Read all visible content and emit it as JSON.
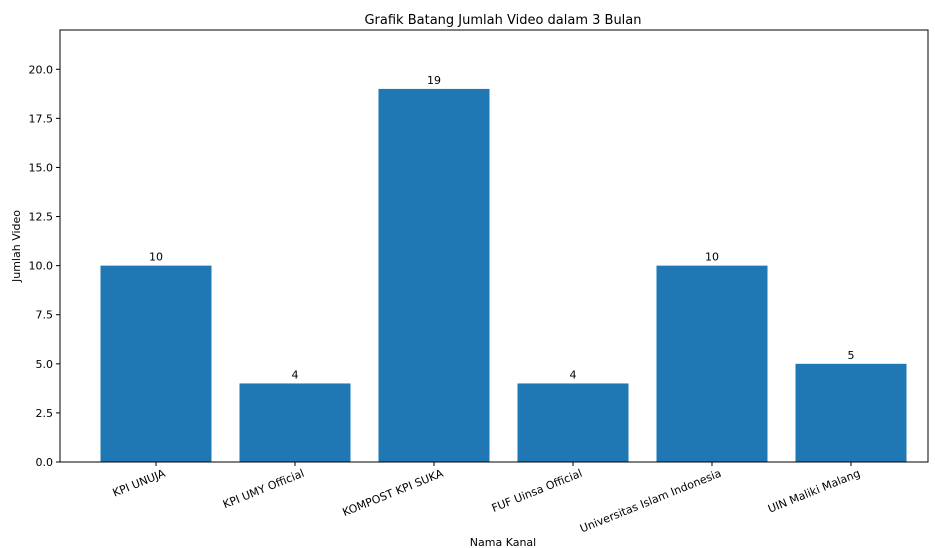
{
  "chart_data": {
    "type": "bar",
    "title": "Grafik Batang Jumlah Video dalam 3 Bulan",
    "xlabel": "Nama Kanal",
    "ylabel": "Jumlah Video",
    "categories": [
      "KPI UNUJA",
      "KPI UMY Official",
      "KOMPOST KPI SUKA",
      "FUF Uinsa Official",
      "Universitas Islam Indonesia",
      "UIN Maliki Malang"
    ],
    "values": [
      10,
      4,
      19,
      4,
      10,
      5
    ],
    "data_labels": [
      "10",
      "4",
      "19",
      "4",
      "10",
      "5"
    ],
    "ylim": [
      0,
      22
    ],
    "yticks": [
      0,
      2.5,
      5,
      7.5,
      10,
      12.5,
      15,
      17.5,
      20
    ],
    "ytick_labels": [
      "0.0",
      "2.5",
      "5.0",
      "7.5",
      "10.0",
      "12.5",
      "15.0",
      "17.5",
      "20.0"
    ],
    "grid": false,
    "bar_color": "#1f77b4"
  }
}
